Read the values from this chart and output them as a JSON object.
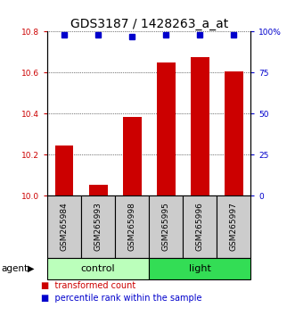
{
  "title": "GDS3187 / 1428263_a_at",
  "samples": [
    "GSM265984",
    "GSM265993",
    "GSM265998",
    "GSM265995",
    "GSM265996",
    "GSM265997"
  ],
  "bar_values": [
    10.245,
    10.055,
    10.385,
    10.648,
    10.675,
    10.608
  ],
  "percentile_values": [
    98,
    98,
    97,
    98,
    98,
    98
  ],
  "ylim_left": [
    10.0,
    10.8
  ],
  "ylim_right": [
    0,
    100
  ],
  "yticks_left": [
    10.0,
    10.2,
    10.4,
    10.6,
    10.8
  ],
  "yticks_right": [
    0,
    25,
    50,
    75,
    100
  ],
  "bar_color": "#cc0000",
  "percentile_color": "#0000cc",
  "bar_width": 0.55,
  "groups": [
    {
      "label": "control",
      "start": 0,
      "end": 3,
      "color": "#bbffbb"
    },
    {
      "label": "light",
      "start": 3,
      "end": 6,
      "color": "#33dd55"
    }
  ],
  "agent_label": "agent",
  "legend_items": [
    {
      "label": "transformed count",
      "color": "#cc0000"
    },
    {
      "label": "percentile rank within the sample",
      "color": "#0000cc"
    }
  ],
  "title_fontsize": 10,
  "tick_label_fontsize": 6.5,
  "legend_fontsize": 7,
  "group_label_fontsize": 8,
  "sample_fontsize": 6.5,
  "sample_box_color": "#cccccc",
  "background_color": "#ffffff"
}
